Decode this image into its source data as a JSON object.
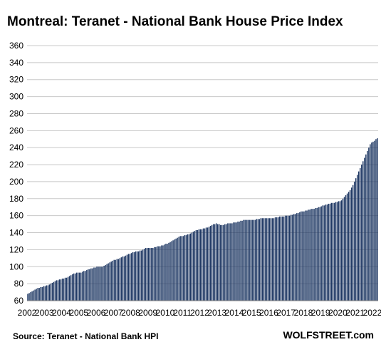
{
  "chart_data": {
    "type": "bar",
    "title": "Montreal: Teranet - National Bank House Price Index",
    "xlabel": "",
    "ylabel": "",
    "ylim": [
      60,
      360
    ],
    "yticks": [
      60,
      80,
      100,
      120,
      140,
      160,
      180,
      200,
      220,
      240,
      260,
      280,
      300,
      320,
      340,
      360
    ],
    "xticks": [
      "2002",
      "2003",
      "2004",
      "2005",
      "2006",
      "2007",
      "2008",
      "2009",
      "2010",
      "2011",
      "2012",
      "2013",
      "2014",
      "2015",
      "2016",
      "2017",
      "2018",
      "2019",
      "2020",
      "2021",
      "2022"
    ],
    "grid": true,
    "bar_color": "#1f3864",
    "x_start": "2002-01",
    "frequency": "monthly",
    "values": [
      68,
      69,
      70,
      71,
      72,
      73,
      74,
      75,
      75,
      76,
      76,
      77,
      77,
      78,
      78,
      79,
      80,
      81,
      82,
      83,
      84,
      84,
      85,
      85,
      86,
      86,
      87,
      87,
      88,
      89,
      90,
      91,
      92,
      92,
      93,
      93,
      93,
      93,
      94,
      95,
      95,
      96,
      97,
      97,
      98,
      98,
      99,
      99,
      100,
      100,
      100,
      100,
      100,
      101,
      102,
      103,
      104,
      105,
      106,
      107,
      108,
      108,
      109,
      109,
      110,
      111,
      112,
      112,
      113,
      114,
      115,
      115,
      116,
      117,
      117,
      118,
      118,
      118,
      119,
      119,
      120,
      121,
      122,
      122,
      122,
      122,
      122,
      122,
      123,
      123,
      124,
      124,
      124,
      125,
      125,
      126,
      127,
      127,
      128,
      129,
      130,
      131,
      132,
      133,
      134,
      135,
      136,
      136,
      136,
      137,
      137,
      138,
      138,
      139,
      140,
      141,
      142,
      143,
      143,
      144,
      144,
      144,
      145,
      145,
      146,
      146,
      147,
      148,
      149,
      150,
      150,
      151,
      150,
      150,
      149,
      149,
      149,
      150,
      150,
      151,
      151,
      151,
      151,
      152,
      152,
      152,
      153,
      153,
      154,
      154,
      155,
      155,
      155,
      155,
      155,
      155,
      155,
      155,
      155,
      156,
      156,
      156,
      157,
      157,
      157,
      157,
      157,
      157,
      157,
      157,
      157,
      157,
      158,
      158,
      158,
      159,
      159,
      159,
      159,
      160,
      160,
      160,
      160,
      161,
      161,
      162,
      162,
      163,
      163,
      164,
      165,
      165,
      165,
      166,
      166,
      167,
      167,
      168,
      168,
      168,
      169,
      169,
      170,
      170,
      171,
      172,
      172,
      173,
      173,
      174,
      174,
      175,
      175,
      175,
      176,
      176,
      177,
      177,
      178,
      180,
      182,
      184,
      186,
      188,
      190,
      193,
      196,
      200,
      204,
      208,
      212,
      216,
      220,
      224,
      228,
      232,
      236,
      240,
      244,
      246,
      247,
      248,
      250,
      251
    ]
  },
  "source": "Source: Teranet - National Bank HPI",
  "brand": "WOLFSTREET.com"
}
